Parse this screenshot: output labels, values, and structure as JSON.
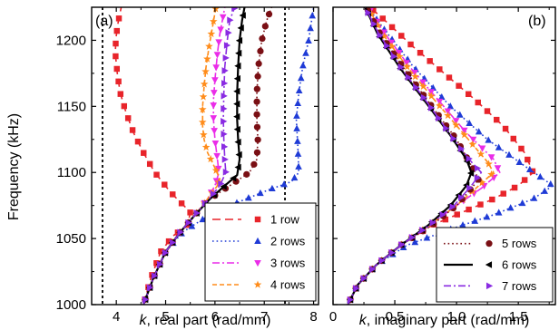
{
  "chart_data": [
    {
      "type": "line",
      "panel_label": "(a)",
      "xlabel_symbol": "k",
      "xlabel_rest": ", real part (rad/mm)",
      "ylabel": "Frequency (kHz)",
      "xlim": [
        3.5,
        8.1
      ],
      "ylim": [
        1000,
        1225
      ],
      "xticks": [
        4,
        5,
        6,
        7,
        8
      ],
      "yticks": [
        1000,
        1050,
        1100,
        1150,
        1200
      ],
      "vlines": [
        3.72,
        7.42
      ],
      "legend_position": "bottom-right",
      "series": [
        {
          "name": "1 row",
          "color": "#e8242a",
          "dash": "dash-long",
          "marker": "square",
          "x": [
            4.55,
            4.7,
            4.9,
            5.15,
            5.45,
            5.5,
            5.1,
            4.78,
            4.55,
            4.35,
            4.2,
            4.08,
            4.02,
            3.98,
            3.99,
            4.02,
            4.06,
            4.1
          ],
          "y": [
            1000,
            1020,
            1040,
            1052,
            1060,
            1070,
            1085,
            1100,
            1115,
            1130,
            1145,
            1160,
            1175,
            1190,
            1200,
            1210,
            1218,
            1225
          ]
        },
        {
          "name": "2 rows",
          "color": "#1f3bd6",
          "dash": "dot",
          "marker": "triangle-up",
          "x": [
            4.55,
            4.75,
            5.0,
            5.35,
            5.9,
            6.5,
            7.1,
            7.55,
            7.7,
            7.68,
            7.65,
            7.7,
            7.78,
            7.9,
            8.0
          ],
          "y": [
            1000,
            1020,
            1040,
            1055,
            1068,
            1078,
            1087,
            1093,
            1100,
            1120,
            1140,
            1160,
            1180,
            1200,
            1225
          ]
        },
        {
          "name": "3 rows",
          "color": "#ea2ce8",
          "dash": "dash-dot",
          "marker": "triangle-down",
          "x": [
            4.55,
            4.75,
            5.0,
            5.3,
            5.6,
            5.85,
            6.0,
            6.08,
            6.05,
            6.0,
            5.97,
            5.97,
            6.0,
            6.05,
            6.1,
            6.2
          ],
          "y": [
            1000,
            1020,
            1040,
            1055,
            1068,
            1080,
            1090,
            1100,
            1110,
            1125,
            1140,
            1155,
            1170,
            1190,
            1205,
            1225
          ]
        },
        {
          "name": "4 rows",
          "color": "#ff8c1a",
          "dash": "dash-short",
          "marker": "star",
          "x": [
            4.55,
            4.75,
            5.0,
            5.3,
            5.6,
            5.85,
            6.05,
            6.1,
            5.98,
            5.85,
            5.78,
            5.75,
            5.75,
            5.78,
            5.82,
            5.88,
            5.95,
            6.02
          ],
          "y": [
            1000,
            1020,
            1040,
            1055,
            1068,
            1080,
            1090,
            1095,
            1105,
            1115,
            1125,
            1135,
            1150,
            1165,
            1180,
            1195,
            1210,
            1225
          ]
        },
        {
          "name": "5 rows",
          "color": "#7a0f14",
          "dash": "dot",
          "marker": "circle",
          "x": [
            4.55,
            4.75,
            5.0,
            5.3,
            5.6,
            5.9,
            6.3,
            6.7,
            6.85,
            6.87,
            6.85,
            6.85,
            6.88,
            6.95,
            7.05,
            7.15
          ],
          "y": [
            1000,
            1020,
            1040,
            1055,
            1068,
            1080,
            1090,
            1100,
            1110,
            1125,
            1140,
            1160,
            1180,
            1200,
            1215,
            1225
          ]
        },
        {
          "name": "6 rows",
          "color": "#000000",
          "dash": "solid",
          "marker": "triangle-left",
          "x": [
            4.55,
            4.75,
            5.0,
            5.3,
            5.6,
            5.9,
            6.2,
            6.45,
            6.5,
            6.47,
            6.45,
            6.45,
            6.47,
            6.5,
            6.55,
            6.6
          ],
          "y": [
            1000,
            1020,
            1040,
            1055,
            1068,
            1080,
            1090,
            1098,
            1110,
            1125,
            1140,
            1160,
            1180,
            1200,
            1215,
            1225
          ]
        },
        {
          "name": "7 rows",
          "color": "#8a2be2",
          "dash": "dash-dot",
          "marker": "triangle-right",
          "x": [
            4.55,
            4.75,
            5.0,
            5.3,
            5.6,
            5.88,
            6.1,
            6.22,
            6.2,
            6.18,
            6.17,
            6.18,
            6.2,
            6.25,
            6.3,
            6.4
          ],
          "y": [
            1000,
            1020,
            1040,
            1055,
            1068,
            1080,
            1090,
            1100,
            1110,
            1125,
            1140,
            1160,
            1180,
            1200,
            1215,
            1225
          ]
        }
      ]
    },
    {
      "type": "line",
      "panel_label": "(b)",
      "xlabel_symbol": "k",
      "xlabel_rest": ", imaginary part (rad/mm)",
      "xlim": [
        0,
        1.8
      ],
      "ylim": [
        1000,
        1225
      ],
      "xticks": [
        0,
        0.5,
        1.0,
        1.5
      ],
      "xticklabels": [
        "0",
        "0.5",
        "1.0",
        "1.5"
      ],
      "yticks": [
        1000,
        1050,
        1100,
        1150,
        1200
      ],
      "legend_position": "bottom-right",
      "series": [
        {
          "name": "1 row",
          "color": "#e8242a",
          "dash": "dash-long",
          "marker": "square",
          "x": [
            0.12,
            0.2,
            0.35,
            0.55,
            0.8,
            1.05,
            1.3,
            1.5,
            1.62,
            1.55,
            1.38,
            1.15,
            0.9,
            0.65,
            0.42,
            0.3
          ],
          "y": [
            1000,
            1015,
            1030,
            1045,
            1060,
            1070,
            1080,
            1090,
            1100,
            1115,
            1135,
            1155,
            1175,
            1195,
            1215,
            1225
          ]
        },
        {
          "name": "2 rows",
          "color": "#1f3bd6",
          "dash": "dot",
          "marker": "triangle-up",
          "x": [
            0.12,
            0.2,
            0.35,
            0.6,
            0.95,
            1.3,
            1.62,
            1.78,
            1.55,
            1.25,
            0.95,
            0.65,
            0.4,
            0.28
          ],
          "y": [
            1000,
            1015,
            1030,
            1045,
            1057,
            1068,
            1080,
            1090,
            1105,
            1125,
            1150,
            1180,
            1210,
            1225
          ]
        },
        {
          "name": "3 rows",
          "color": "#ea2ce8",
          "dash": "dash-dot",
          "marker": "triangle-down",
          "x": [
            0.12,
            0.2,
            0.35,
            0.55,
            0.78,
            1.0,
            1.2,
            1.35,
            1.3,
            1.08,
            0.85,
            0.62,
            0.42,
            0.28
          ],
          "y": [
            1000,
            1015,
            1030,
            1045,
            1060,
            1075,
            1088,
            1100,
            1110,
            1130,
            1155,
            1180,
            1205,
            1225
          ]
        },
        {
          "name": "4 rows",
          "color": "#ff8c1a",
          "dash": "dash-short",
          "marker": "star",
          "x": [
            0.12,
            0.2,
            0.35,
            0.55,
            0.78,
            1.0,
            1.18,
            1.3,
            1.25,
            1.05,
            0.82,
            0.6,
            0.4,
            0.28
          ],
          "y": [
            1000,
            1015,
            1030,
            1045,
            1060,
            1075,
            1090,
            1100,
            1108,
            1130,
            1155,
            1180,
            1205,
            1225
          ]
        },
        {
          "name": "5 rows",
          "color": "#7a0f14",
          "dash": "dot",
          "marker": "circle",
          "x": [
            0.12,
            0.2,
            0.35,
            0.55,
            0.8,
            1.0,
            1.12,
            1.18,
            1.12,
            1.0,
            0.8,
            0.58,
            0.38,
            0.27
          ],
          "y": [
            1000,
            1015,
            1030,
            1045,
            1060,
            1075,
            1088,
            1095,
            1105,
            1125,
            1150,
            1178,
            1205,
            1225
          ]
        },
        {
          "name": "6 rows",
          "color": "#000000",
          "dash": "solid",
          "marker": "triangle-left",
          "x": [
            0.12,
            0.2,
            0.35,
            0.55,
            0.77,
            0.95,
            1.08,
            1.12,
            1.08,
            0.95,
            0.76,
            0.55,
            0.36,
            0.26
          ],
          "y": [
            1000,
            1015,
            1030,
            1045,
            1060,
            1075,
            1090,
            1100,
            1110,
            1128,
            1152,
            1178,
            1205,
            1225
          ]
        },
        {
          "name": "7 rows",
          "color": "#8a2be2",
          "dash": "dash-dot",
          "marker": "triangle-right",
          "x": [
            0.12,
            0.2,
            0.35,
            0.55,
            0.78,
            0.98,
            1.12,
            1.2,
            1.12,
            0.97,
            0.77,
            0.56,
            0.37,
            0.26
          ],
          "y": [
            1000,
            1015,
            1030,
            1045,
            1060,
            1075,
            1090,
            1100,
            1108,
            1126,
            1152,
            1178,
            1205,
            1225
          ]
        }
      ]
    }
  ],
  "legend_groups": [
    {
      "panel": 0,
      "series": [
        0,
        1,
        2,
        3
      ]
    },
    {
      "panel": 1,
      "series": [
        4,
        5,
        6
      ]
    }
  ]
}
